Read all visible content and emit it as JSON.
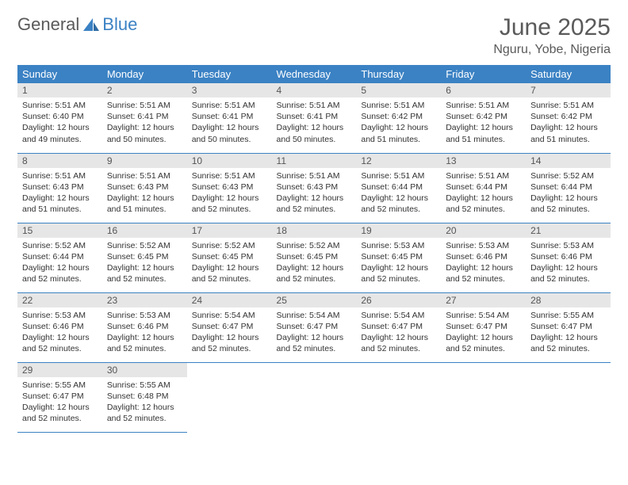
{
  "logo": {
    "part1": "General",
    "part2": "Blue"
  },
  "header": {
    "title": "June 2025",
    "location": "Nguru, Yobe, Nigeria"
  },
  "colors": {
    "accent": "#3b82c4",
    "daynum_bg": "#e6e6e6",
    "text": "#333333",
    "muted": "#5a5a5a"
  },
  "weekdays": [
    "Sunday",
    "Monday",
    "Tuesday",
    "Wednesday",
    "Thursday",
    "Friday",
    "Saturday"
  ],
  "days": [
    {
      "n": "1",
      "sr": "5:51 AM",
      "ss": "6:40 PM",
      "dl": "12 hours and 49 minutes."
    },
    {
      "n": "2",
      "sr": "5:51 AM",
      "ss": "6:41 PM",
      "dl": "12 hours and 50 minutes."
    },
    {
      "n": "3",
      "sr": "5:51 AM",
      "ss": "6:41 PM",
      "dl": "12 hours and 50 minutes."
    },
    {
      "n": "4",
      "sr": "5:51 AM",
      "ss": "6:41 PM",
      "dl": "12 hours and 50 minutes."
    },
    {
      "n": "5",
      "sr": "5:51 AM",
      "ss": "6:42 PM",
      "dl": "12 hours and 51 minutes."
    },
    {
      "n": "6",
      "sr": "5:51 AM",
      "ss": "6:42 PM",
      "dl": "12 hours and 51 minutes."
    },
    {
      "n": "7",
      "sr": "5:51 AM",
      "ss": "6:42 PM",
      "dl": "12 hours and 51 minutes."
    },
    {
      "n": "8",
      "sr": "5:51 AM",
      "ss": "6:43 PM",
      "dl": "12 hours and 51 minutes."
    },
    {
      "n": "9",
      "sr": "5:51 AM",
      "ss": "6:43 PM",
      "dl": "12 hours and 51 minutes."
    },
    {
      "n": "10",
      "sr": "5:51 AM",
      "ss": "6:43 PM",
      "dl": "12 hours and 52 minutes."
    },
    {
      "n": "11",
      "sr": "5:51 AM",
      "ss": "6:43 PM",
      "dl": "12 hours and 52 minutes."
    },
    {
      "n": "12",
      "sr": "5:51 AM",
      "ss": "6:44 PM",
      "dl": "12 hours and 52 minutes."
    },
    {
      "n": "13",
      "sr": "5:51 AM",
      "ss": "6:44 PM",
      "dl": "12 hours and 52 minutes."
    },
    {
      "n": "14",
      "sr": "5:52 AM",
      "ss": "6:44 PM",
      "dl": "12 hours and 52 minutes."
    },
    {
      "n": "15",
      "sr": "5:52 AM",
      "ss": "6:44 PM",
      "dl": "12 hours and 52 minutes."
    },
    {
      "n": "16",
      "sr": "5:52 AM",
      "ss": "6:45 PM",
      "dl": "12 hours and 52 minutes."
    },
    {
      "n": "17",
      "sr": "5:52 AM",
      "ss": "6:45 PM",
      "dl": "12 hours and 52 minutes."
    },
    {
      "n": "18",
      "sr": "5:52 AM",
      "ss": "6:45 PM",
      "dl": "12 hours and 52 minutes."
    },
    {
      "n": "19",
      "sr": "5:53 AM",
      "ss": "6:45 PM",
      "dl": "12 hours and 52 minutes."
    },
    {
      "n": "20",
      "sr": "5:53 AM",
      "ss": "6:46 PM",
      "dl": "12 hours and 52 minutes."
    },
    {
      "n": "21",
      "sr": "5:53 AM",
      "ss": "6:46 PM",
      "dl": "12 hours and 52 minutes."
    },
    {
      "n": "22",
      "sr": "5:53 AM",
      "ss": "6:46 PM",
      "dl": "12 hours and 52 minutes."
    },
    {
      "n": "23",
      "sr": "5:53 AM",
      "ss": "6:46 PM",
      "dl": "12 hours and 52 minutes."
    },
    {
      "n": "24",
      "sr": "5:54 AM",
      "ss": "6:47 PM",
      "dl": "12 hours and 52 minutes."
    },
    {
      "n": "25",
      "sr": "5:54 AM",
      "ss": "6:47 PM",
      "dl": "12 hours and 52 minutes."
    },
    {
      "n": "26",
      "sr": "5:54 AM",
      "ss": "6:47 PM",
      "dl": "12 hours and 52 minutes."
    },
    {
      "n": "27",
      "sr": "5:54 AM",
      "ss": "6:47 PM",
      "dl": "12 hours and 52 minutes."
    },
    {
      "n": "28",
      "sr": "5:55 AM",
      "ss": "6:47 PM",
      "dl": "12 hours and 52 minutes."
    },
    {
      "n": "29",
      "sr": "5:55 AM",
      "ss": "6:47 PM",
      "dl": "12 hours and 52 minutes."
    },
    {
      "n": "30",
      "sr": "5:55 AM",
      "ss": "6:48 PM",
      "dl": "12 hours and 52 minutes."
    }
  ],
  "labels": {
    "sunrise": "Sunrise: ",
    "sunset": "Sunset: ",
    "daylight": "Daylight: "
  },
  "grid": {
    "start_weekday": 0,
    "total_cells": 35
  }
}
